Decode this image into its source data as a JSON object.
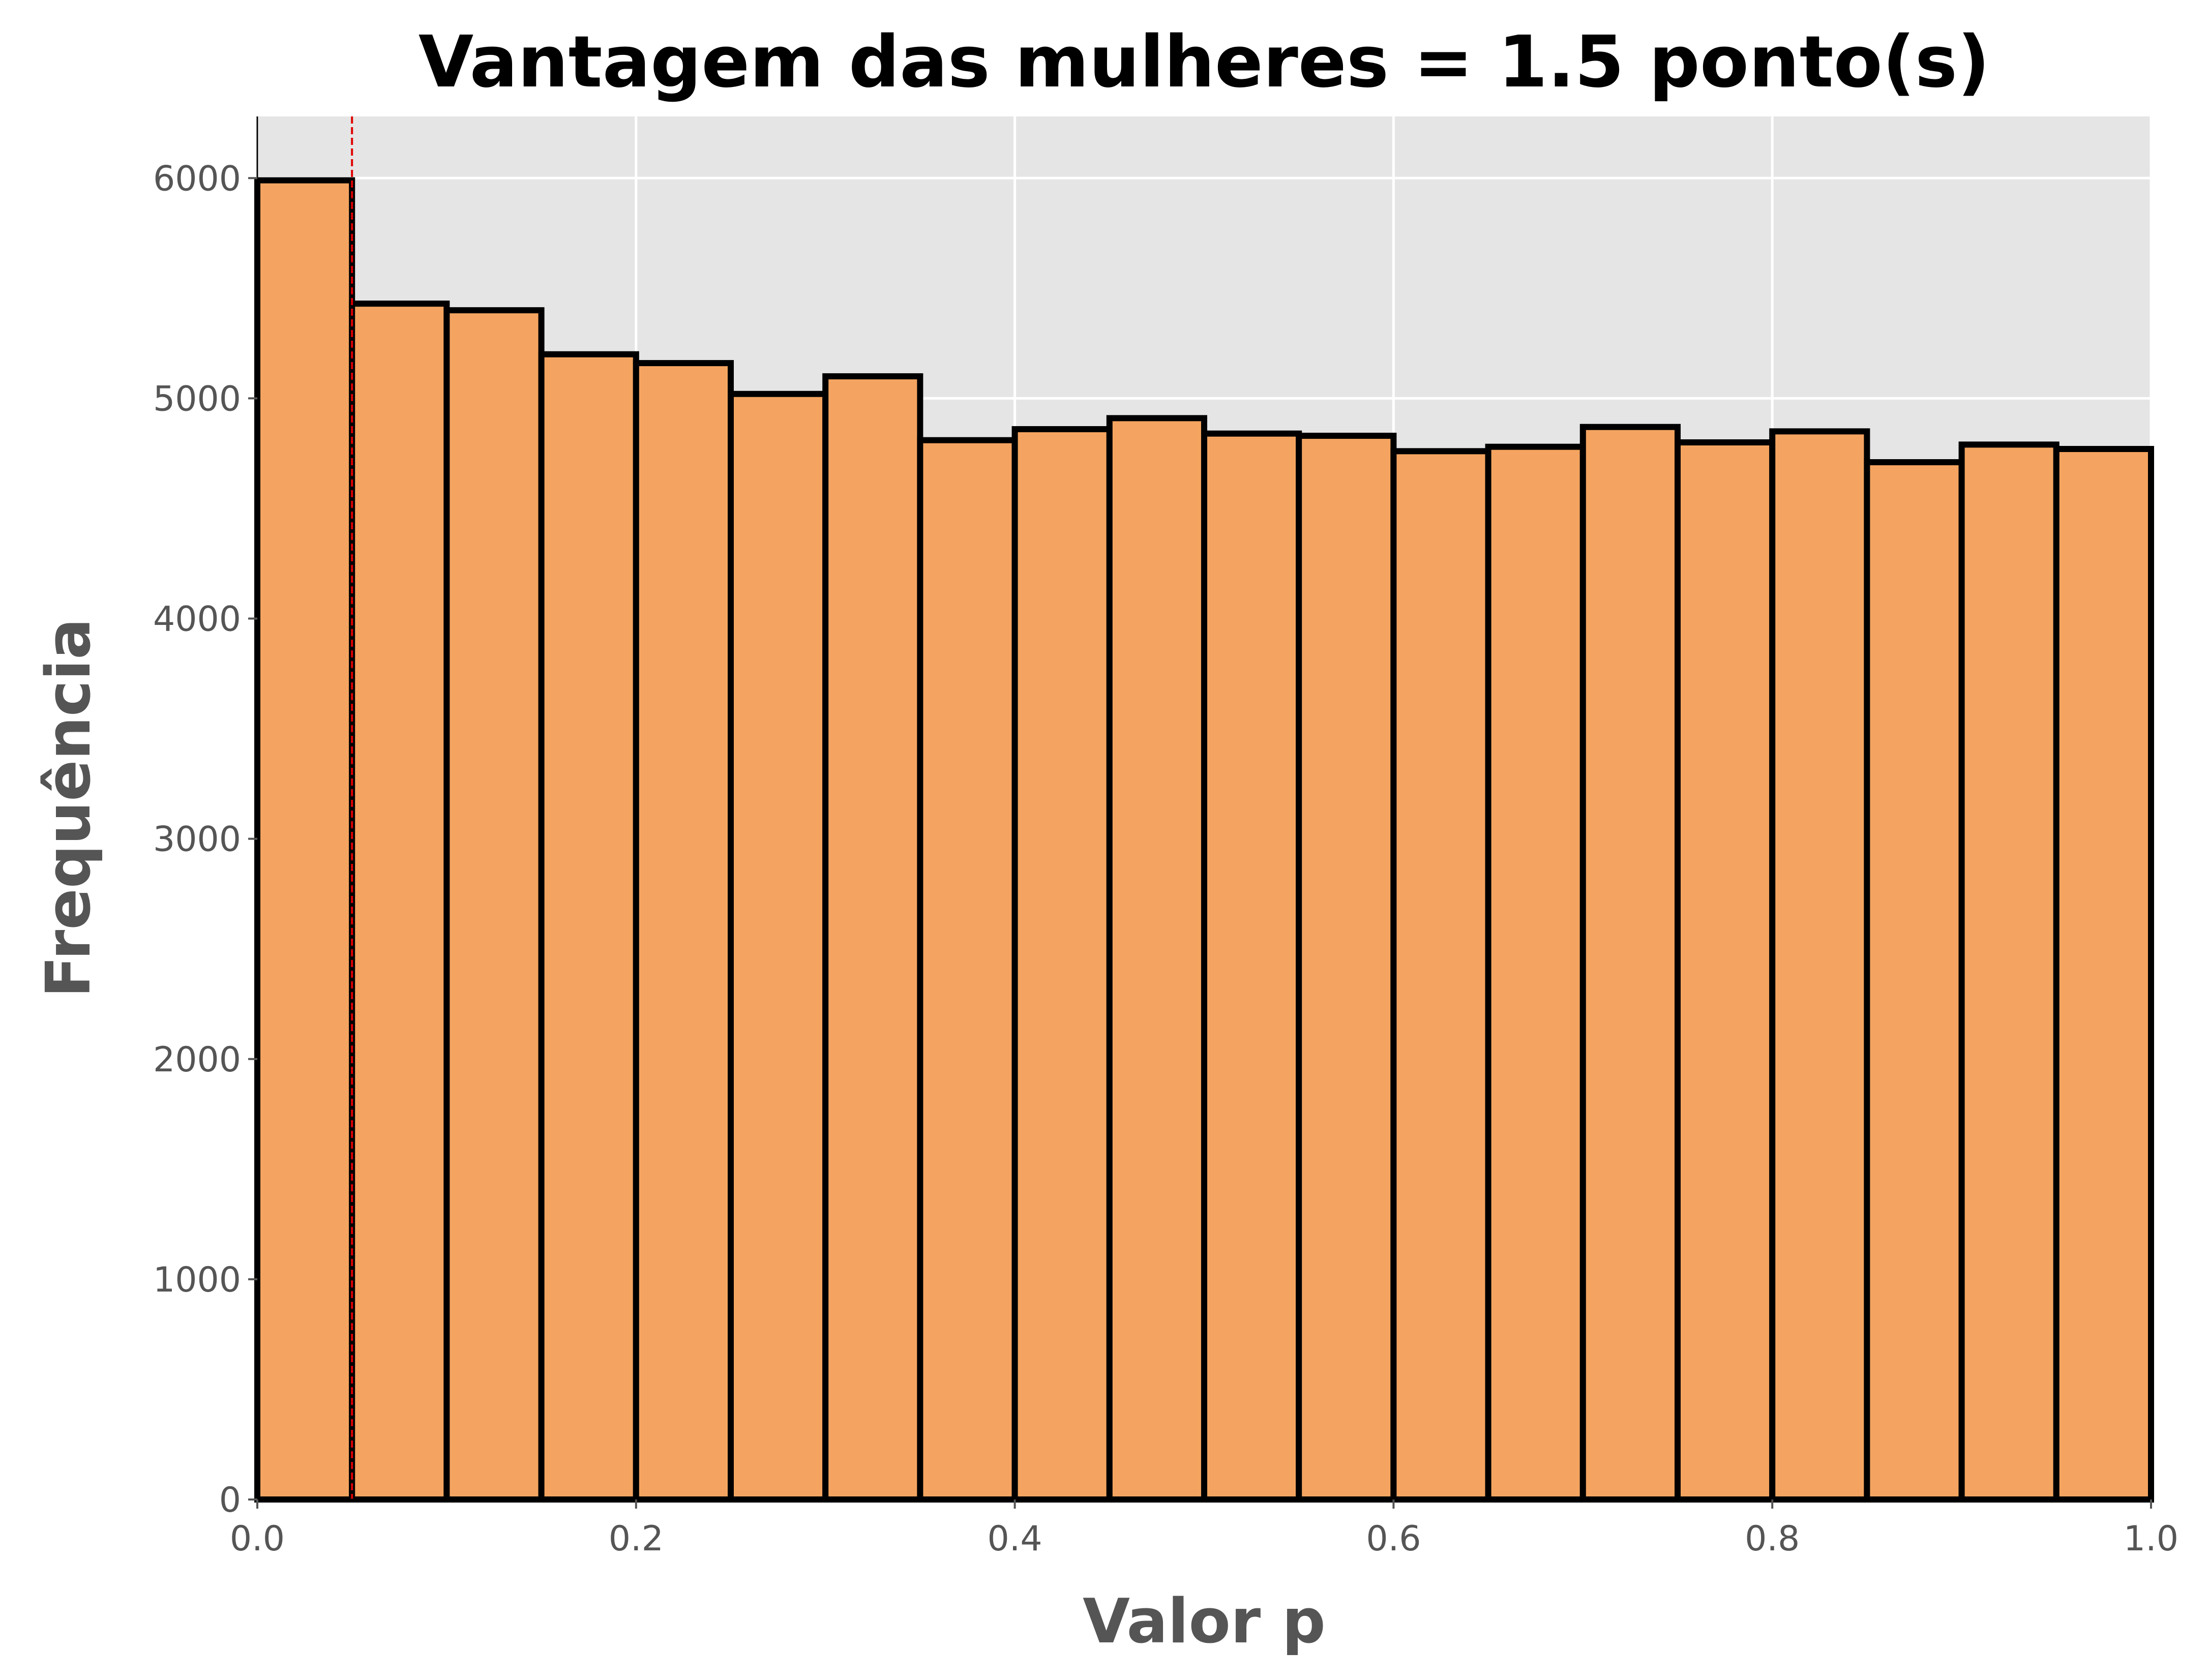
{
  "chart_data": {
    "type": "bar",
    "title": "Vantagem das mulheres = 1.5 ponto(s)",
    "xlabel": "Valor p",
    "ylabel": "Frequência",
    "bin_edges": [
      0.0,
      0.05,
      0.1,
      0.15,
      0.2,
      0.25,
      0.3,
      0.35,
      0.4,
      0.45,
      0.5,
      0.55,
      0.6,
      0.65,
      0.7,
      0.75,
      0.8,
      0.85,
      0.9,
      0.95,
      1.0
    ],
    "values": [
      5990,
      5430,
      5400,
      5200,
      5160,
      5020,
      5100,
      4810,
      4860,
      4910,
      4840,
      4830,
      4760,
      4780,
      4870,
      4800,
      4850,
      4710,
      4790,
      4770
    ],
    "xlim": [
      0.0,
      1.0
    ],
    "ylim": [
      0,
      6280
    ],
    "xticks": [
      "0.0",
      "0.2",
      "0.4",
      "0.6",
      "0.8",
      "1.0"
    ],
    "xtick_values": [
      0.0,
      0.2,
      0.4,
      0.6,
      0.8,
      1.0
    ],
    "yticks": [
      "0",
      "1000",
      "2000",
      "3000",
      "4000",
      "5000",
      "6000"
    ],
    "ytick_values": [
      0,
      1000,
      2000,
      3000,
      4000,
      5000,
      6000
    ],
    "reference_line": {
      "x": 0.05,
      "style": "dashed",
      "color": "#e00000"
    },
    "grid": true,
    "colors": {
      "bar_fill": "#f4a460",
      "bar_edge": "#000000",
      "plot_background": "#e5e5e5",
      "grid": "#ffffff"
    }
  }
}
